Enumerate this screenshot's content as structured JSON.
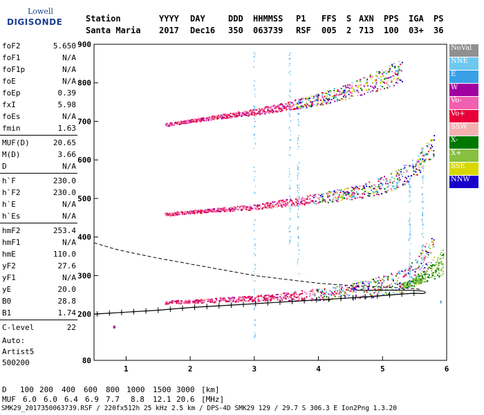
{
  "logo": {
    "line1": "Lowell",
    "line2": "DIGISONDE"
  },
  "header": {
    "row1": [
      "Station",
      "YYYY",
      "DAY",
      "DDD",
      "HHMMSS",
      "P1",
      "FFS",
      "S",
      "AXN",
      "PPS",
      "IGA",
      "PS"
    ],
    "row2": [
      "Santa Maria",
      "2017",
      "Dec16",
      "350",
      "063739",
      "RSF",
      "005",
      "2",
      "713",
      "100",
      "03+",
      "36"
    ]
  },
  "params": {
    "group1": [
      {
        "name": "foF2",
        "value": "5.650"
      },
      {
        "name": "foF1",
        "value": "N/A"
      },
      {
        "name": "foF1p",
        "value": "N/A"
      },
      {
        "name": "foE",
        "value": "N/A"
      },
      {
        "name": "foEp",
        "value": "0.39"
      },
      {
        "name": "fxI",
        "value": "5.98"
      },
      {
        "name": "foEs",
        "value": "N/A"
      },
      {
        "name": "fmin",
        "value": "1.63"
      }
    ],
    "group2": [
      {
        "name": "MUF(D)",
        "value": "20.65"
      },
      {
        "name": "M(D)",
        "value": "3.66"
      },
      {
        "name": "D",
        "value": "N/A"
      }
    ],
    "group3": [
      {
        "name": "h`F",
        "value": "230.0"
      },
      {
        "name": "h`F2",
        "value": "230.0"
      },
      {
        "name": "h`E",
        "value": "N/A"
      },
      {
        "name": "h`Es",
        "value": "N/A"
      }
    ],
    "group4": [
      {
        "name": "hmF2",
        "value": "253.4"
      },
      {
        "name": "hmF1",
        "value": "N/A"
      },
      {
        "name": "hmE",
        "value": "110.0"
      },
      {
        "name": "yF2",
        "value": "27.6"
      },
      {
        "name": "yF1",
        "value": "N/A"
      },
      {
        "name": "yE",
        "value": "20.0"
      },
      {
        "name": "B0",
        "value": "28.8"
      },
      {
        "name": "B1",
        "value": "1.74"
      }
    ],
    "group5": [
      {
        "name": "C-level",
        "value": "22"
      }
    ]
  },
  "auto": {
    "line1": "Auto:",
    "line2": "Artist5",
    "line3": "500200"
  },
  "legend": [
    {
      "label": "NoVal",
      "color": "#909090"
    },
    {
      "label": "NNE",
      "color": "#6ec8f0"
    },
    {
      "label": "E",
      "color": "#3aa0e6"
    },
    {
      "label": "W",
      "color": "#a000a0"
    },
    {
      "label": "Vo-",
      "color": "#f060b0"
    },
    {
      "label": "Vo+",
      "color": "#e8003a"
    },
    {
      "label": "SSW",
      "color": "#f4b0b0"
    },
    {
      "label": "X-",
      "color": "#007800"
    },
    {
      "label": "X+",
      "color": "#88c040"
    },
    {
      "label": "SSE",
      "color": "#d8d800"
    },
    {
      "label": "NNW",
      "color": "#1800c8"
    }
  ],
  "mufTable": {
    "dLabel": "D",
    "mufLabel": "MUF",
    "distances": [
      "100",
      "200",
      "400",
      "600",
      "800",
      "1000",
      "1500",
      "3000"
    ],
    "distUnit": "[km]",
    "mufs": [
      "6.0",
      "6.0",
      "6.4",
      "6.9",
      "7.7",
      "8.8",
      "12.1",
      "20.6"
    ],
    "mufUnit": "[MHz]"
  },
  "footer": "SMK29_2017350063739.RSF / 220fx512h 25 kHz 2.5 km / DPS-4D SMK29 129 / 29.7 S 306.3 E Ion2Png 1.3.20",
  "chart_data": {
    "type": "scatter",
    "xlim": [
      0.5,
      6.0
    ],
    "ylim": [
      80,
      900
    ],
    "xticks": [
      1,
      2,
      3,
      4,
      5,
      6
    ],
    "yticks": [
      80,
      200,
      300,
      400,
      500,
      600,
      700,
      800,
      900
    ],
    "grid": false,
    "legend_position": "right",
    "traces": [
      {
        "name": "o-trace-1",
        "x": [
          1.6,
          2.0,
          2.5,
          3.0,
          3.5,
          4.0,
          4.5,
          5.0,
          5.3,
          5.5,
          5.65,
          5.8
        ],
        "y": [
          230,
          232,
          236,
          238,
          242,
          246,
          252,
          262,
          275,
          295,
          330,
          360
        ]
      },
      {
        "name": "o-trace-2",
        "x": [
          1.6,
          2.0,
          2.5,
          3.0,
          3.5,
          4.0,
          4.5,
          5.0,
          5.3,
          5.5,
          5.65,
          5.8
        ],
        "y": [
          458,
          464,
          470,
          476,
          486,
          496,
          508,
          526,
          548,
          572,
          600,
          625
        ]
      },
      {
        "name": "o-trace-3",
        "x": [
          1.6,
          2.0,
          2.5,
          3.0,
          3.5,
          4.0,
          4.5,
          5.0,
          5.3
        ],
        "y": [
          690,
          700,
          712,
          722,
          736,
          752,
          772,
          800,
          822
        ]
      },
      {
        "name": "x-trace",
        "x": [
          5.3,
          5.5,
          5.7,
          5.85,
          5.95
        ],
        "y": [
          272,
          282,
          298,
          310,
          325
        ]
      }
    ],
    "profile": {
      "x": [
        0.5,
        1.0,
        1.5,
        2.0,
        2.5,
        3.0,
        3.5,
        4.0,
        4.5,
        5.0,
        5.3,
        5.5,
        5.65
      ],
      "y": [
        200,
        205,
        210,
        217,
        222,
        227,
        232,
        237,
        242,
        248,
        252,
        254,
        253.4
      ]
    },
    "mufCurve": {
      "x": [
        0.5,
        0.8,
        1.0,
        1.5,
        2.0,
        2.5,
        3.0,
        3.5,
        4.0,
        4.5,
        5.0,
        5.3,
        5.5,
        5.6
      ],
      "y": [
        385,
        370,
        362,
        345,
        330,
        315,
        300,
        290,
        280,
        274,
        270,
        268,
        266,
        264
      ]
    }
  }
}
